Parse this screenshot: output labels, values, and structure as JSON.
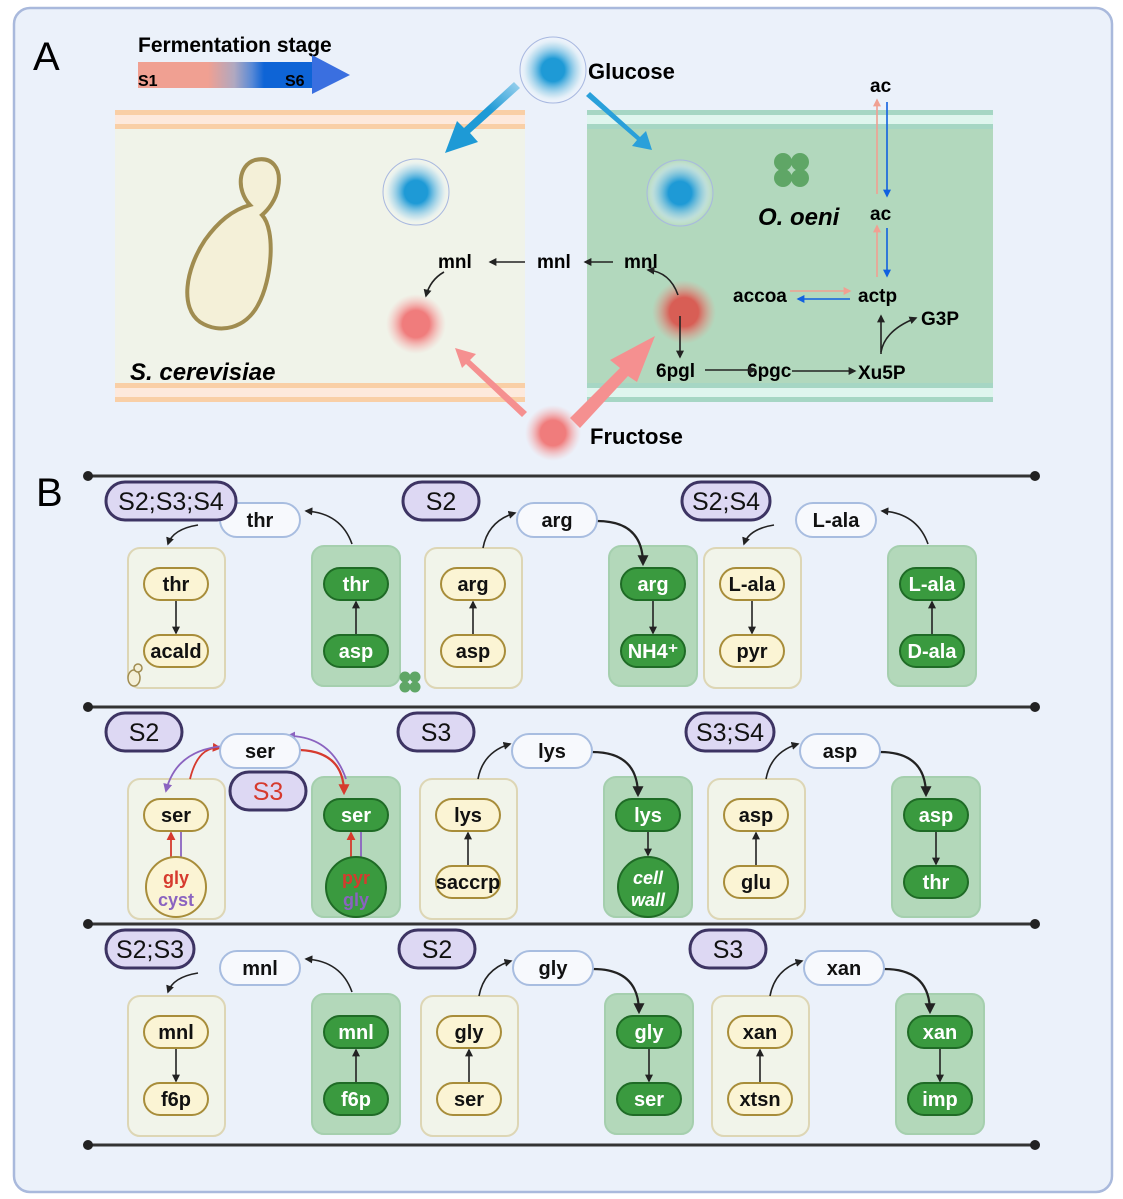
{
  "colors": {
    "background": "#ebf1fa",
    "border": "#a9b9dc",
    "yeast_fill": "#f1f4ea",
    "bacteria_fill": "#b3d8ba",
    "yeast_node": "#fbf4d4",
    "bacteria_node": "#3a9a3f",
    "stage_label_fill": "#ddd8f3",
    "glucose": "#1e9ad6",
    "fructose": "#f07c7c",
    "red_path": "#d63a2e",
    "purple_path": "#8b63c0"
  },
  "panel_a": {
    "label": "A",
    "legend": {
      "title": "Fermentation stage",
      "start": "S1",
      "end": "S6",
      "gradient": [
        "#f0a092",
        "#b0a8c0",
        "#0e64d6"
      ]
    },
    "glucose": "Glucose",
    "fructose": "Fructose",
    "yeast_name": "S. cerevisiae",
    "bacteria_name": "O. oeni",
    "metabolites": {
      "mnl_yeast": "mnl",
      "mnl_medium": "mnl",
      "mnl_bacteria": "mnl",
      "ac_out": "ac",
      "ac_in": "ac",
      "accoa": "accoa",
      "actp": "actp",
      "g3p": "G3P",
      "pgl": "6pgl",
      "pgc": "6pgc",
      "xu5p": "Xu5P"
    }
  },
  "panel_b": {
    "label": "B",
    "rows": [
      [
        {
          "stage": "S2;S3;S4",
          "metabolite": "thr",
          "direction": "to_yeast",
          "yeast_nodes": [
            "thr",
            "acald"
          ],
          "yeast_flow": "down",
          "bacteria_nodes": [
            "thr",
            "asp"
          ],
          "bacteria_flow": "up",
          "icons": true
        },
        {
          "stage": "S2",
          "metabolite": "arg",
          "direction": "to_bacteria",
          "yeast_nodes": [
            "arg",
            "asp"
          ],
          "yeast_flow": "up",
          "bacteria_nodes": [
            "arg",
            "NH4⁺"
          ],
          "bacteria_flow": "down"
        },
        {
          "stage": "S2;S4",
          "metabolite": "L-ala",
          "direction": "to_yeast",
          "yeast_nodes": [
            "L-ala",
            "pyr"
          ],
          "yeast_flow": "down",
          "bacteria_nodes": [
            "L-ala",
            "D-ala"
          ],
          "bacteria_flow": "up"
        }
      ],
      [
        {
          "stage": "S2",
          "stage_secondary": "S3",
          "metabolite": "ser",
          "direction": "both",
          "yeast_nodes": [
            "ser",
            [
              "gly",
              "cyst"
            ]
          ],
          "yeast_flow": "both",
          "bacteria_nodes": [
            "ser",
            [
              "pyr",
              "gly"
            ]
          ],
          "bacteria_flow": "both"
        },
        {
          "stage": "S3",
          "metabolite": "lys",
          "direction": "to_bacteria",
          "yeast_nodes": [
            "lys",
            "saccrp"
          ],
          "yeast_flow": "up",
          "bacteria_nodes": [
            "lys",
            [
              "cell",
              "wall"
            ]
          ],
          "bacteria_flow": "down",
          "italic_bottom": true
        },
        {
          "stage": "S3;S4",
          "metabolite": "asp",
          "direction": "to_bacteria",
          "yeast_nodes": [
            "asp",
            "glu"
          ],
          "yeast_flow": "up",
          "bacteria_nodes": [
            "asp",
            "thr"
          ],
          "bacteria_flow": "down"
        }
      ],
      [
        {
          "stage": "S2;S3",
          "metabolite": "mnl",
          "direction": "to_yeast",
          "yeast_nodes": [
            "mnl",
            "f6p"
          ],
          "yeast_flow": "down",
          "bacteria_nodes": [
            "mnl",
            "f6p"
          ],
          "bacteria_flow": "up"
        },
        {
          "stage": "S2",
          "metabolite": "gly",
          "direction": "to_bacteria",
          "yeast_nodes": [
            "gly",
            "ser"
          ],
          "yeast_flow": "up",
          "bacteria_nodes": [
            "gly",
            "ser"
          ],
          "bacteria_flow": "down"
        },
        {
          "stage": "S3",
          "metabolite": "xan",
          "direction": "to_bacteria",
          "yeast_nodes": [
            "xan",
            "xtsn"
          ],
          "yeast_flow": "up",
          "bacteria_nodes": [
            "xan",
            "imp"
          ],
          "bacteria_flow": "down"
        }
      ]
    ]
  }
}
